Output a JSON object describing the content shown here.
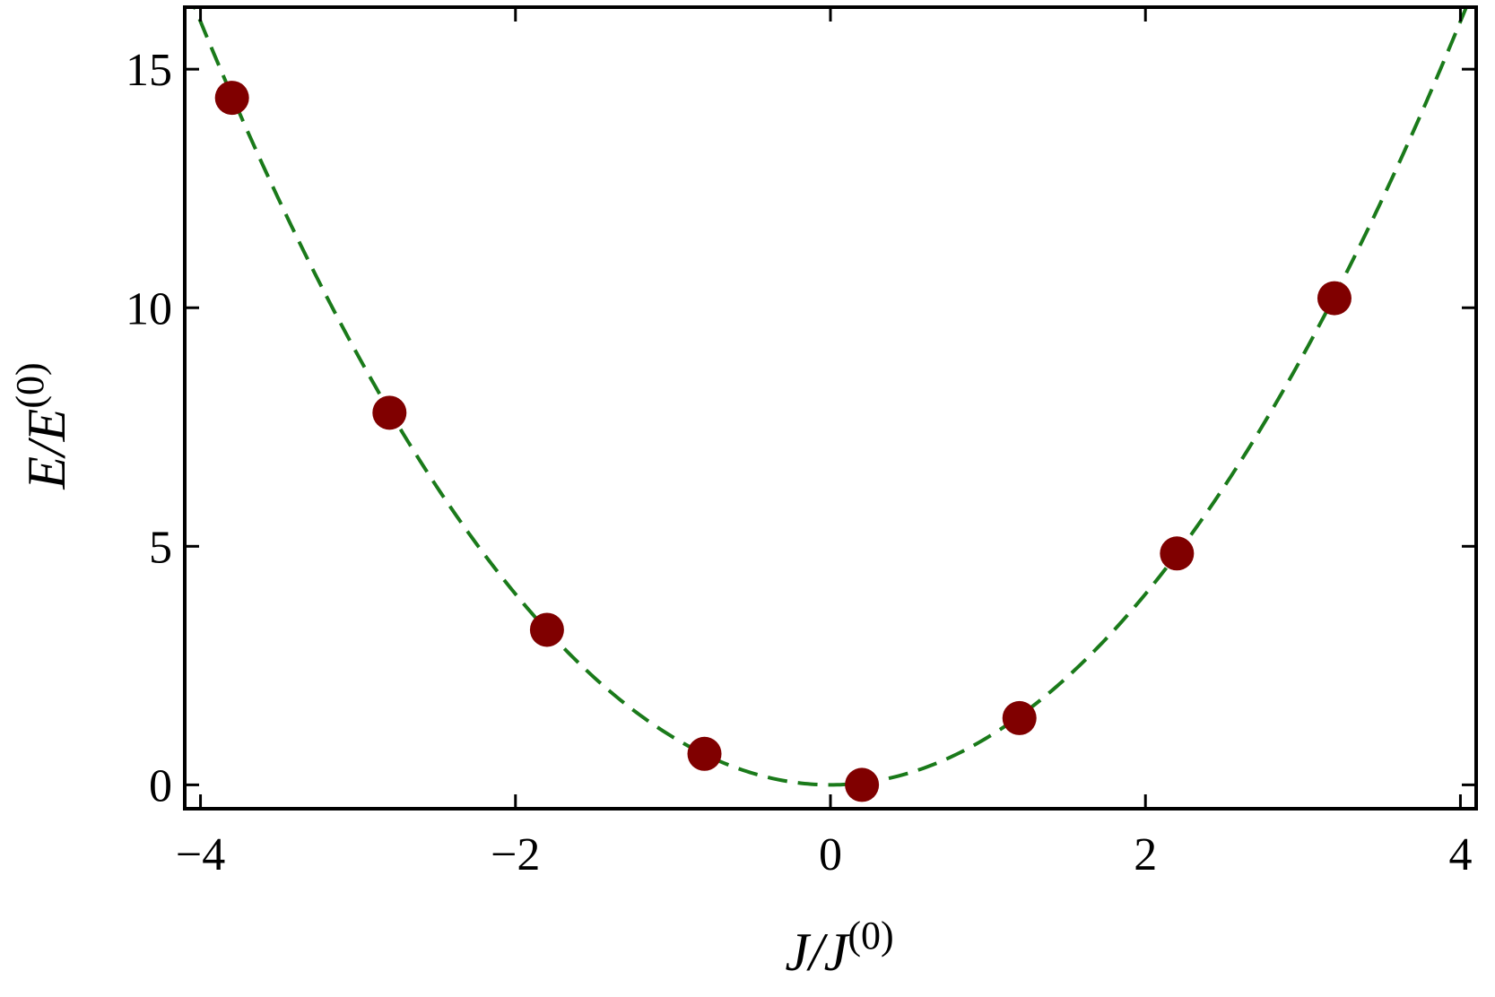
{
  "chart_data": {
    "type": "scatter",
    "xlabel": {
      "base": "J/J",
      "sup": "(0)"
    },
    "ylabel": {
      "base": "E/E",
      "sup": "(0)"
    },
    "xlim": [
      -4.1,
      4.1
    ],
    "ylim": [
      -0.5,
      16.3
    ],
    "x_ticks": [
      -4,
      -2,
      0,
      2,
      4
    ],
    "x_tick_labels": [
      "−4",
      "−2",
      "0",
      "2",
      "4"
    ],
    "y_ticks": [
      0,
      5,
      10,
      15
    ],
    "y_tick_labels": [
      "0",
      "5",
      "10",
      "15"
    ],
    "grid": false,
    "series": [
      {
        "kind": "points",
        "color": "#800000",
        "x": [
          -3.8,
          -2.8,
          -1.8,
          -0.8,
          0.2,
          1.2,
          2.2,
          3.2
        ],
        "y": [
          14.4,
          7.8,
          3.25,
          0.65,
          0.0,
          1.4,
          4.85,
          10.2
        ]
      },
      {
        "kind": "fit",
        "style": "dashed",
        "color": "#1a7a1a",
        "equation": "y = x^2",
        "coefficient": 1.0
      }
    ]
  }
}
